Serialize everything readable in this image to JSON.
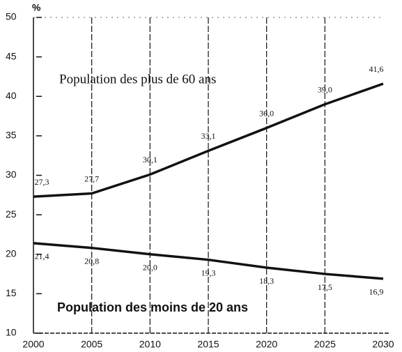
{
  "chart_data": {
    "type": "line",
    "y_label": "%",
    "x": [
      2000,
      2005,
      2010,
      2015,
      2020,
      2025,
      2030
    ],
    "xlim": [
      2000,
      2030
    ],
    "xticks": [
      2000,
      2005,
      2010,
      2015,
      2020,
      2025,
      2030
    ],
    "ylim": [
      10,
      50
    ],
    "yticks": [
      10,
      15,
      20,
      25,
      30,
      35,
      40,
      45,
      50
    ],
    "grid": true,
    "series": [
      {
        "name": "Population des plus de 60 ans",
        "color": "#111111",
        "values": [
          27.3,
          27.7,
          30.1,
          33.1,
          36.0,
          39.0,
          41.6
        ],
        "value_labels": [
          "27,3",
          "27,7",
          "30,1",
          "33,1",
          "36,0",
          "39,0",
          "41,6"
        ]
      },
      {
        "name": "Population des moins de 20 ans",
        "color": "#111111",
        "values": [
          21.4,
          20.8,
          20.0,
          19.3,
          18.3,
          17.5,
          16.9
        ],
        "value_labels": [
          "21,4",
          "20,8",
          "20,0",
          "19,3",
          "18,3",
          "17,5",
          "16,9"
        ]
      }
    ]
  }
}
